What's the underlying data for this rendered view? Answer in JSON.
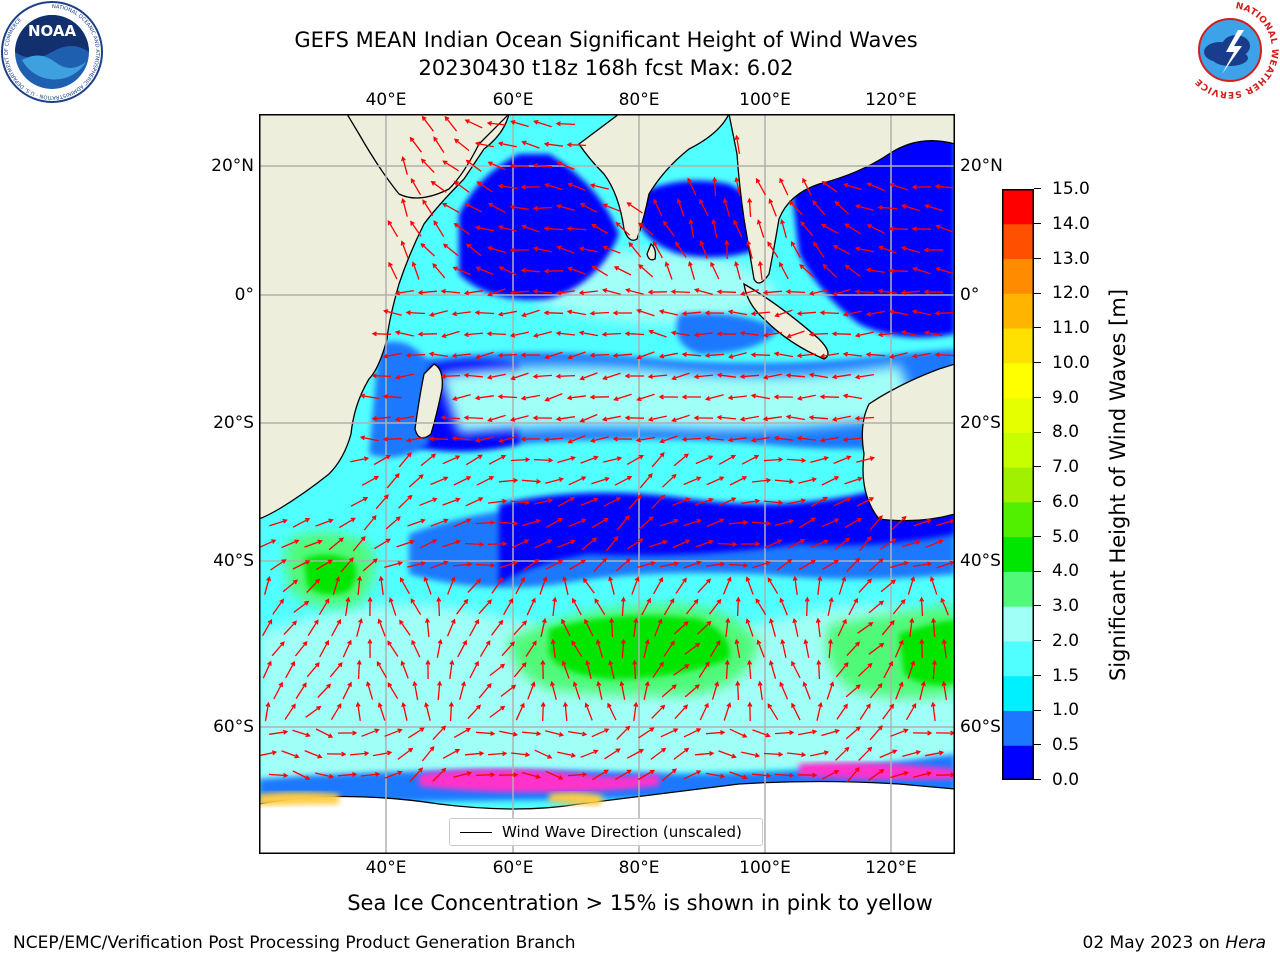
{
  "title": {
    "line1": "GEFS MEAN Indian Ocean Significant Height of Wind Waves",
    "line2": "20230430 t18z 168h fcst   Max: 6.02"
  },
  "map": {
    "lon_labels": [
      "40°E",
      "60°E",
      "80°E",
      "100°E",
      "120°E"
    ],
    "lat_labels": [
      "20°N",
      "0°",
      "20°S",
      "40°S",
      "60°S"
    ],
    "legend_label": "Wind Wave Direction (unscaled)",
    "colors": {
      "land": "#eeeedd",
      "ice_pink": "#ff33cc",
      "ice_yellow": "#ffcc44",
      "arrow": "#ff0000",
      "grid": "#b0b0b0"
    },
    "wave_bands": [
      "0.0-0.5",
      "0.5-1.0",
      "1.0-1.5",
      "1.5-2.0",
      "2.0-3.0",
      "3.0-4.0",
      "4.0-5.0"
    ]
  },
  "colorbar": {
    "label": "Significant Height of Wind Waves [m]",
    "ticks": [
      "0.0",
      "0.5",
      "1.0",
      "1.5",
      "2.0",
      "3.0",
      "4.0",
      "5.0",
      "6.0",
      "7.0",
      "8.0",
      "9.0",
      "10.0",
      "11.0",
      "12.0",
      "13.0",
      "14.0",
      "15.0"
    ],
    "colors": [
      "#0000ff",
      "#1e78ff",
      "#00f0ff",
      "#50ffff",
      "#a0fff6",
      "#50fa78",
      "#00e600",
      "#50f000",
      "#a0f000",
      "#c8ff00",
      "#e6ff00",
      "#ffff00",
      "#ffe100",
      "#ffb400",
      "#ff8c00",
      "#ff5000",
      "#ff0000"
    ]
  },
  "caption": "Sea Ice Concentration > 15% is shown in pink to yellow",
  "footer": {
    "left": "NCEP/EMC/Verification Post Processing Product Generation Branch",
    "right_date": "02 May 2023 on ",
    "right_host": "Hera"
  },
  "logos": {
    "noaa": "NOAA",
    "noaa_ring": "NATIONAL OCEANIC AND ATMOSPHERIC ADMINISTRATION · U.S. DEPARTMENT OF COMMERCE",
    "nws_ring": "NATIONAL WEATHER SERVICE"
  }
}
